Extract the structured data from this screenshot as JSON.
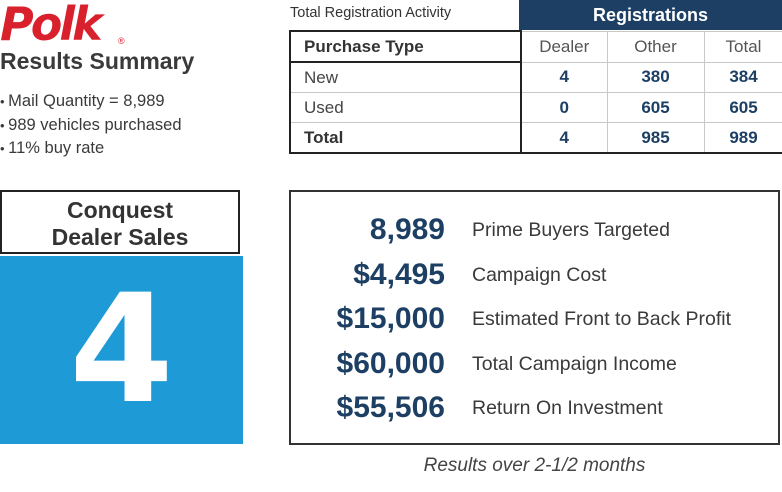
{
  "logo": {
    "text": "Polk",
    "mark": "®"
  },
  "summary": {
    "title": "Results Summary",
    "bullets": [
      "Mail Quantity = 8,989",
      "989 vehicles purchased",
      "11% buy rate"
    ]
  },
  "registrations": {
    "caption": "Total Registration Activity",
    "header": "Registrations",
    "columns": [
      "Purchase Type",
      "Dealer",
      "Other",
      "Total"
    ],
    "rows": [
      {
        "label": "New",
        "dealer": "4",
        "other": "380",
        "total": "384"
      },
      {
        "label": "Used",
        "dealer": "0",
        "other": "605",
        "total": "605"
      },
      {
        "label": "Total",
        "dealer": "4",
        "other": "985",
        "total": "989"
      }
    ]
  },
  "conquest": {
    "title_line1": "Conquest",
    "title_line2": "Dealer Sales",
    "value": "4"
  },
  "metrics": [
    {
      "value": "8,989",
      "label": "Prime Buyers Targeted"
    },
    {
      "value": "$4,495",
      "label": "Campaign Cost"
    },
    {
      "value": "$15,000",
      "label": "Estimated Front to Back Profit"
    },
    {
      "value": "$60,000",
      "label": "Total Campaign Income"
    },
    {
      "value": "$55,506",
      "label": "Return On Investment"
    }
  ],
  "footnote": "Results over 2-1/2 months",
  "colors": {
    "brand_red": "#d9202d",
    "navy": "#1c3f63",
    "blue": "#1e9ad6"
  }
}
